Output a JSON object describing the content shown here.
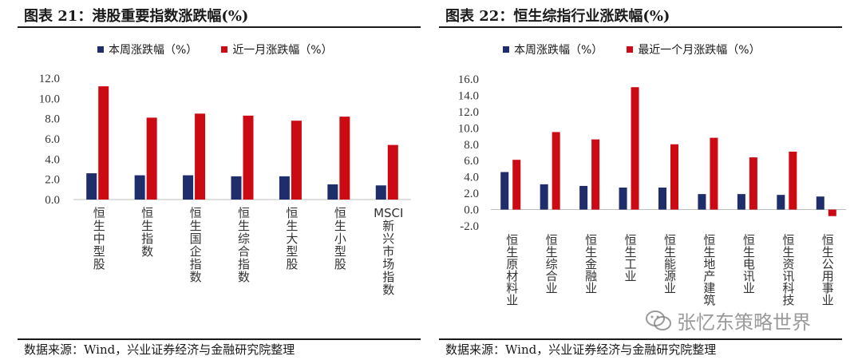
{
  "colors": {
    "series1": "#1f2d6b",
    "series2": "#cc0a14"
  },
  "left": {
    "title": "图表 21：港股重要指数涨跌幅(%)",
    "source": "数据来源：Wind，兴业证券经济与金融研究院整理"
  },
  "right": {
    "title": "图表 22：恒生综指行业涨跌幅(%)",
    "source": "数据来源：Wind，兴业证券经济与金融研究院整理"
  },
  "watermark": {
    "text": "张忆东策略世界",
    "icon": "wechat-icon"
  },
  "chart_data": [
    {
      "type": "bar",
      "categories": [
        "恒生中型股",
        "恒生指数",
        "恒生国企指数",
        "恒生综合指数",
        "恒生大型股",
        "恒生小型股",
        "MSCI新兴市场指数"
      ],
      "series": [
        {
          "name": "本周涨跌幅（%）",
          "values": [
            2.6,
            2.4,
            2.4,
            2.3,
            2.3,
            1.5,
            1.4
          ]
        },
        {
          "name": "近一月涨跌幅（%）",
          "values": [
            11.2,
            8.1,
            8.5,
            8.3,
            7.8,
            8.2,
            5.4
          ]
        }
      ],
      "ylim": [
        0,
        12
      ],
      "yticks": [
        "0.0",
        "2.0",
        "4.0",
        "6.0",
        "8.0",
        "10.0",
        "12.0"
      ],
      "legend": "top",
      "grid": false
    },
    {
      "type": "bar",
      "categories": [
        "恒生原材料业",
        "恒生综合业",
        "恒生金融业",
        "恒生工业",
        "恒生能源业",
        "恒生地产建筑",
        "恒生电讯业",
        "恒生资讯科技",
        "恒生公用事业"
      ],
      "series": [
        {
          "name": "本周涨跌幅（%）",
          "values": [
            4.6,
            3.1,
            2.9,
            2.7,
            2.7,
            1.9,
            1.9,
            1.8,
            1.6
          ]
        },
        {
          "name": "最近一个月涨跌幅（%）",
          "values": [
            6.1,
            9.5,
            8.6,
            15.0,
            8.0,
            8.8,
            6.4,
            7.1,
            -0.8
          ]
        }
      ],
      "ylim": [
        -2,
        16
      ],
      "yticks": [
        "-2.0",
        "0.0",
        "2.0",
        "4.0",
        "6.0",
        "8.0",
        "10.0",
        "12.0",
        "14.0",
        "16.0"
      ],
      "legend": "top",
      "grid": false
    }
  ]
}
